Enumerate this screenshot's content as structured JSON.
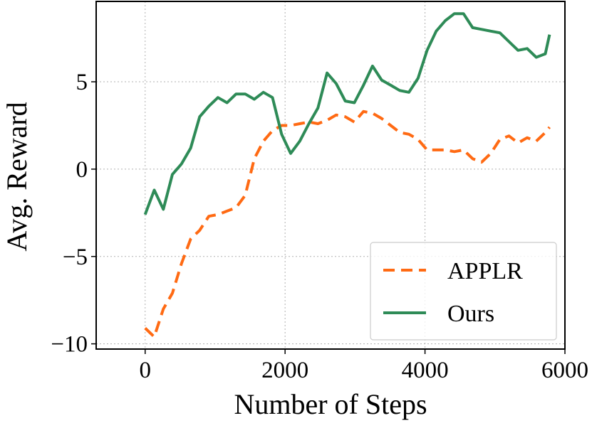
{
  "chart_data": {
    "type": "line",
    "xlabel": "Number of Steps",
    "ylabel": "Avg. Reward",
    "xlim": [
      -700,
      6000
    ],
    "ylim": [
      -10.3,
      9.6
    ],
    "xticks": [
      0,
      2000,
      4000,
      6000
    ],
    "yticks": [
      -10,
      -5,
      0,
      5
    ],
    "xtick_labels": [
      "0",
      "2000",
      "4000",
      "6000"
    ],
    "ytick_labels": [
      "−10",
      "−5",
      "0",
      "5"
    ],
    "grid": true,
    "legend_position": "bottom-right",
    "series": [
      {
        "name": "APPLR",
        "color": "#ff6a13",
        "style": "dashed",
        "x": [
          0,
          130,
          260,
          390,
          520,
          650,
          780,
          910,
          1040,
          1170,
          1300,
          1430,
          1560,
          1690,
          1820,
          1950,
          2080,
          2210,
          2340,
          2470,
          2600,
          2730,
          2860,
          2990,
          3120,
          3250,
          3380,
          3510,
          3640,
          3770,
          3900,
          4030,
          4160,
          4290,
          4420,
          4550,
          4680,
          4810,
          4940,
          5070,
          5200,
          5330,
          5460,
          5590,
          5720,
          5780
        ],
        "y": [
          -9.1,
          -9.6,
          -8.0,
          -7.1,
          -5.4,
          -4.0,
          -3.5,
          -2.7,
          -2.6,
          -2.4,
          -2.2,
          -1.5,
          0.6,
          1.6,
          2.2,
          2.5,
          2.5,
          2.6,
          2.7,
          2.6,
          2.8,
          3.1,
          3.0,
          2.7,
          3.3,
          3.2,
          2.9,
          2.5,
          2.1,
          2.0,
          1.7,
          1.1,
          1.1,
          1.1,
          1.0,
          1.1,
          0.6,
          0.4,
          0.9,
          1.7,
          1.9,
          1.5,
          1.8,
          1.6,
          2.1,
          2.4
        ]
      },
      {
        "name": "Ours",
        "color": "#2e8b57",
        "style": "solid",
        "x": [
          0,
          130,
          260,
          390,
          520,
          650,
          780,
          910,
          1040,
          1170,
          1300,
          1430,
          1560,
          1690,
          1820,
          1950,
          2080,
          2210,
          2340,
          2470,
          2600,
          2730,
          2860,
          2990,
          3120,
          3250,
          3380,
          3510,
          3640,
          3770,
          3900,
          4030,
          4160,
          4290,
          4420,
          4550,
          4680,
          4810,
          4940,
          5070,
          5200,
          5330,
          5460,
          5590,
          5720,
          5780
        ],
        "y": [
          -2.6,
          -1.2,
          -2.3,
          -0.3,
          0.3,
          1.2,
          3.0,
          3.6,
          4.1,
          3.8,
          4.3,
          4.3,
          4.0,
          4.4,
          4.1,
          2.0,
          0.9,
          1.6,
          2.6,
          3.5,
          5.5,
          4.9,
          3.9,
          3.8,
          4.8,
          5.9,
          5.1,
          4.8,
          4.5,
          4.4,
          5.2,
          6.8,
          7.9,
          8.5,
          8.9,
          8.9,
          8.1,
          8.0,
          7.9,
          7.8,
          7.3,
          6.8,
          6.9,
          6.4,
          6.6,
          7.7
        ]
      }
    ]
  }
}
